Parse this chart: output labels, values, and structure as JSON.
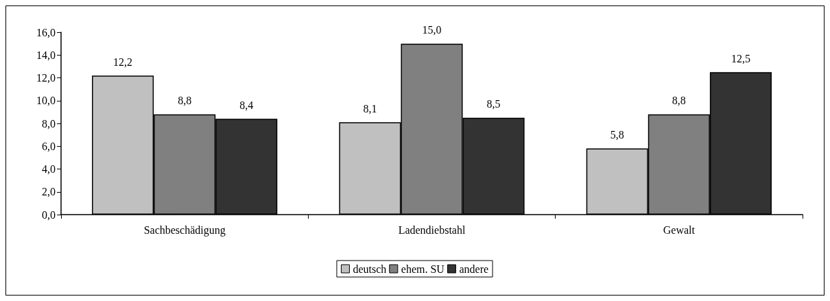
{
  "chart_data": {
    "type": "bar",
    "categories": [
      "Sachbeschädigung",
      "Ladendiebstahl",
      "Gewalt"
    ],
    "series": [
      {
        "name": "deutsch",
        "color": "#c0c0c0",
        "values": [
          12.2,
          8.1,
          5.8
        ],
        "value_labels": [
          "12,2",
          "8,1",
          "5,8"
        ]
      },
      {
        "name": "ehem. SU",
        "color": "#808080",
        "values": [
          8.8,
          15.0,
          8.8
        ],
        "value_labels": [
          "8,8",
          "15,0",
          "8,8"
        ]
      },
      {
        "name": "andere",
        "color": "#333333",
        "values": [
          8.4,
          8.5,
          12.5
        ],
        "value_labels": [
          "8,4",
          "8,5",
          "12,5"
        ]
      }
    ],
    "ylim": [
      0,
      16
    ],
    "yticks": [
      {
        "value": 0,
        "label": "0,0"
      },
      {
        "value": 2,
        "label": "2,0"
      },
      {
        "value": 4,
        "label": "4,0"
      },
      {
        "value": 6,
        "label": "6,0"
      },
      {
        "value": 8,
        "label": "8,0"
      },
      {
        "value": 10,
        "label": "10,0"
      },
      {
        "value": 12,
        "label": "12,0"
      },
      {
        "value": 14,
        "label": "14,0"
      },
      {
        "value": 16,
        "label": "16,0"
      }
    ],
    "grid": false,
    "legend": "bottom"
  }
}
